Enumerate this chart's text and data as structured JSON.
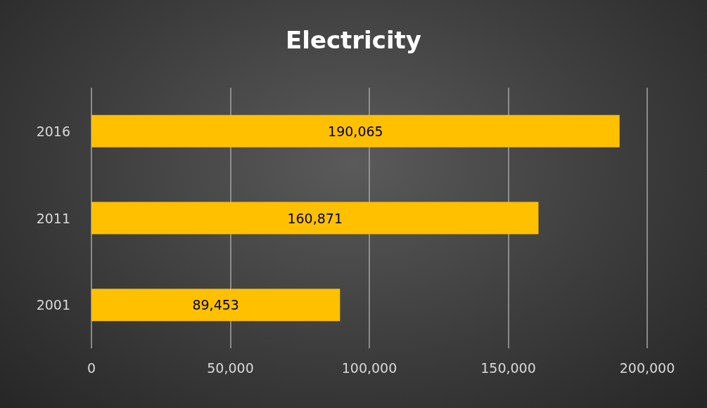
{
  "chart_data": {
    "type": "bar",
    "orientation": "horizontal",
    "title": "Electricity",
    "categories": [
      "2016",
      "2011",
      "2001"
    ],
    "values": [
      190065,
      160871,
      89453
    ],
    "value_labels": [
      "190,065",
      "160,871",
      "89,453"
    ],
    "color": "#ffc000",
    "xlim": [
      0,
      200000
    ],
    "xticks": [
      {
        "value": 0,
        "label": "0"
      },
      {
        "value": 50000,
        "label": "50,000"
      },
      {
        "value": 100000,
        "label": "100,000"
      },
      {
        "value": 150000,
        "label": "150,000"
      },
      {
        "value": 200000,
        "label": "200,000"
      }
    ],
    "grid": "x"
  }
}
